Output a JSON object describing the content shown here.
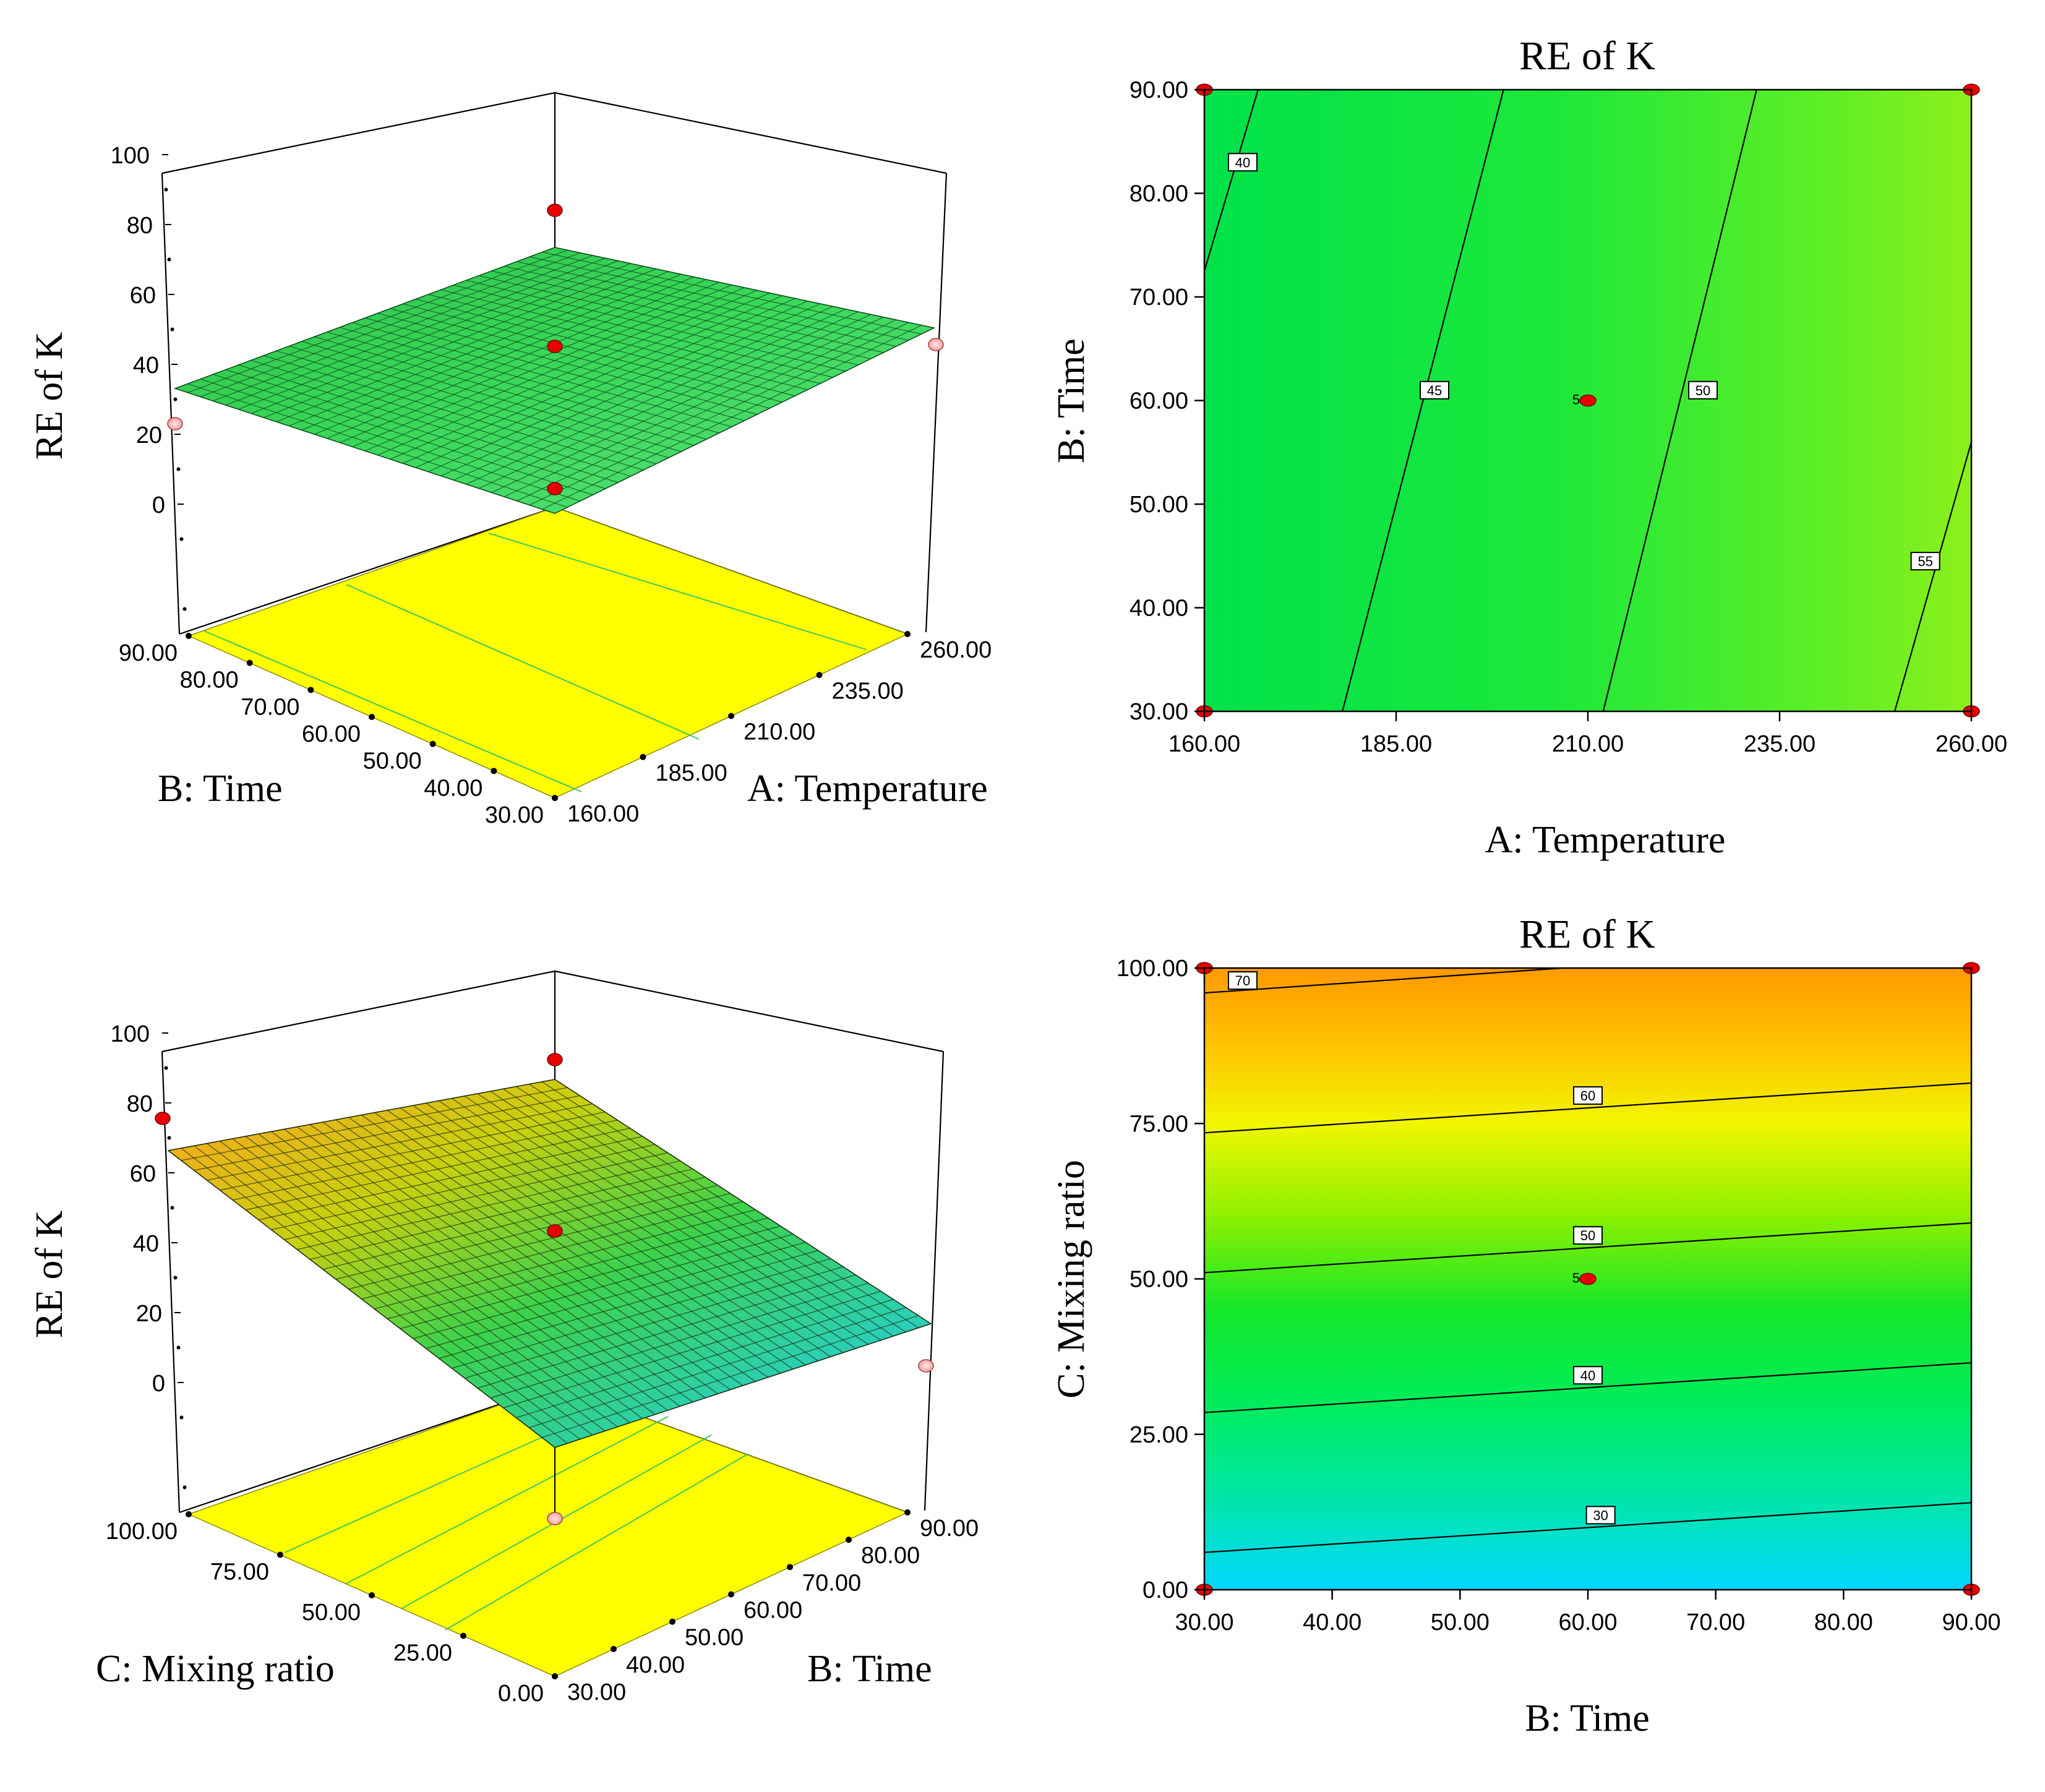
{
  "chart_data": [
    {
      "type": "surface3d",
      "zlabel": "RE of K",
      "z_ticks": [
        "100",
        "80",
        "60",
        "40",
        "20",
        "0"
      ],
      "x_axis": {
        "label": "A: Temperature",
        "ticks": [
          "160.00",
          "185.00",
          "210.00",
          "235.00",
          "260.00"
        ]
      },
      "y_axis": {
        "label": "B: Time",
        "ticks": [
          "30.00",
          "40.00",
          "50.00",
          "60.00",
          "70.00",
          "80.00",
          "90.00"
        ]
      },
      "surface_corners": {
        "A160_B30": 40,
        "A260_B30": 57,
        "A160_B90": 38,
        "A260_B90": 56
      },
      "design_points": [
        {
          "A": 210,
          "B": 60,
          "z": 49
        },
        {
          "A": 210,
          "B": 60,
          "z": 82
        },
        {
          "A": 210,
          "B": 60,
          "z": 10
        },
        {
          "A": 260,
          "B": 90,
          "z": 56
        },
        {
          "A": 160,
          "B": 30,
          "z": 28
        }
      ],
      "colors": {
        "floor": "#ffff00",
        "floor_contour": "#40c860",
        "mesh": "#0a4a1a"
      }
    },
    {
      "type": "contour",
      "title": "RE of K",
      "xlabel": "A: Temperature",
      "ylabel": "B: Time",
      "x_ticks": [
        "160.00",
        "185.00",
        "210.00",
        "235.00",
        "260.00"
      ],
      "y_ticks": [
        "30.00",
        "40.00",
        "50.00",
        "60.00",
        "70.00",
        "80.00",
        "90.00"
      ],
      "xlim": [
        160,
        260
      ],
      "ylim": [
        30,
        90
      ],
      "contours": [
        {
          "level": "40",
          "points": [
            [
              160,
              72.5
            ],
            [
              167,
              90
            ]
          ]
        },
        {
          "level": "45",
          "points": [
            [
              178,
              30
            ],
            [
              199,
              90
            ]
          ]
        },
        {
          "level": "50",
          "points": [
            [
              212,
              30
            ],
            [
              232,
              90
            ]
          ]
        },
        {
          "level": "55",
          "points": [
            [
              250,
              30
            ],
            [
              260,
              56
            ]
          ]
        }
      ],
      "label_positions": [
        [
          165,
          83
        ],
        [
          190,
          61
        ],
        [
          225,
          61
        ],
        [
          254,
          44.5
        ]
      ],
      "center_point": {
        "x": 210,
        "y": 60,
        "label": "5"
      },
      "corner_points": [
        [
          160,
          90
        ],
        [
          260,
          90
        ],
        [
          160,
          30
        ],
        [
          260,
          30
        ]
      ]
    },
    {
      "type": "surface3d",
      "zlabel": "RE of K",
      "z_ticks": [
        "100",
        "80",
        "60",
        "40",
        "20",
        "0"
      ],
      "x_axis": {
        "label": "B: Time",
        "ticks": [
          "30.00",
          "40.00",
          "50.00",
          "60.00",
          "70.00",
          "80.00",
          "90.00"
        ]
      },
      "y_axis": {
        "label": "C: Mixing ratio",
        "ticks": [
          "0.00",
          "25.00",
          "50.00",
          "75.00",
          "100.00"
        ]
      },
      "surface_corners": {
        "B30_C0": 24,
        "B90_C0": 31,
        "B30_C100": 71,
        "B90_C100": 69
      },
      "design_points": [
        {
          "B": 30,
          "C": 100,
          "z": 75
        },
        {
          "B": 60,
          "C": 50,
          "z": 47
        },
        {
          "B": 60,
          "C": 50,
          "z": 85
        },
        {
          "B": 60,
          "C": 50,
          "z": 7
        },
        {
          "B": 90,
          "C": 0,
          "z": 11
        }
      ],
      "colors": {
        "floor": "#ffff00",
        "floor_contour": "#40c860",
        "mesh": "#1a2a0a"
      }
    },
    {
      "type": "contour",
      "title": "RE of K",
      "xlabel": "B: Time",
      "ylabel": "C: Mixing ratio",
      "x_ticks": [
        "30.00",
        "40.00",
        "50.00",
        "60.00",
        "70.00",
        "80.00",
        "90.00"
      ],
      "y_ticks": [
        "0.00",
        "25.00",
        "50.00",
        "75.00",
        "100.00"
      ],
      "xlim": [
        30,
        90
      ],
      "ylim": [
        0,
        100
      ],
      "contours": [
        {
          "level": "70",
          "points": [
            [
              30,
              96
            ],
            [
              58,
              100
            ]
          ]
        },
        {
          "level": "60",
          "points": [
            [
              30,
              73.5
            ],
            [
              90,
              81.5
            ]
          ]
        },
        {
          "level": "50",
          "points": [
            [
              30,
              51
            ],
            [
              90,
              59
            ]
          ]
        },
        {
          "level": "40",
          "points": [
            [
              30,
              28.5
            ],
            [
              90,
              36.5
            ]
          ]
        },
        {
          "level": "30",
          "points": [
            [
              30,
              6
            ],
            [
              90,
              14
            ]
          ]
        }
      ],
      "label_positions": [
        [
          33,
          98
        ],
        [
          60,
          79.5
        ],
        [
          60,
          57
        ],
        [
          60,
          34.5
        ],
        [
          61,
          12
        ]
      ],
      "center_point": {
        "x": 60,
        "y": 50,
        "label": "5"
      },
      "corner_points": [
        [
          30,
          100
        ],
        [
          90,
          100
        ],
        [
          30,
          0
        ],
        [
          90,
          0
        ]
      ]
    }
  ]
}
